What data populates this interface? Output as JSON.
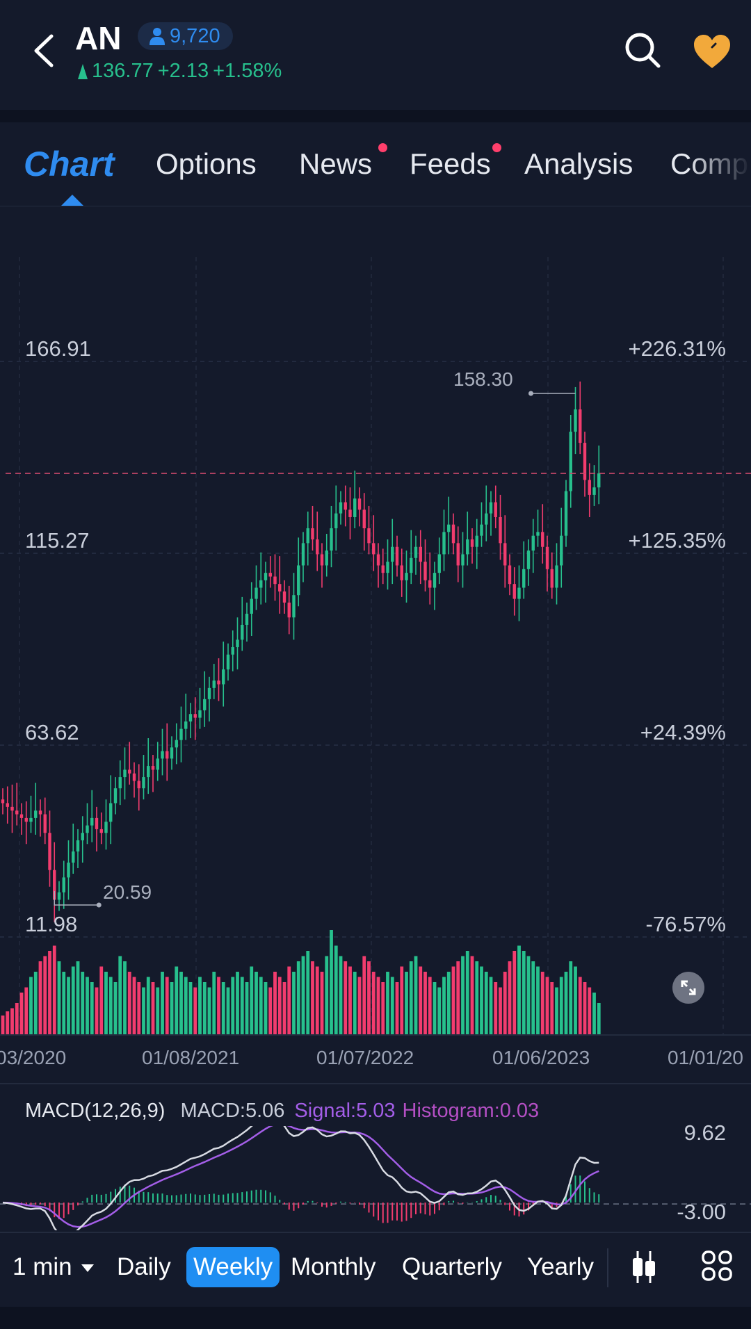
{
  "header": {
    "ticker": "AN",
    "followers": "9,720",
    "price": "136.77",
    "change": "+2.13",
    "change_pct": "+1.58%",
    "accent_up": "#27c08d",
    "accent_down": "#f23c6e",
    "favorite_color": "#f2a93b"
  },
  "tabs": [
    {
      "label": "Chart",
      "active": true
    },
    {
      "label": "Options",
      "dot": false
    },
    {
      "label": "News",
      "dot": true
    },
    {
      "label": "Feeds",
      "dot": true
    },
    {
      "label": "Analysis",
      "dot": false
    },
    {
      "label": "Comp",
      "dot": false
    }
  ],
  "price_axis": {
    "left": [
      "166.91",
      "115.27",
      "63.62",
      "11.98"
    ],
    "right": [
      "+226.31%",
      "+125.35%",
      "+24.39%",
      "-76.57%"
    ]
  },
  "annotations": {
    "high": "158.30",
    "low": "20.59"
  },
  "x_axis_dates": [
    "03/2020",
    "01/08/2021",
    "01/07/2022",
    "01/06/2023",
    "01/01/20"
  ],
  "macd": {
    "title": "MACD(12,26,9)",
    "macd_label": "MACD:5.06",
    "signal_label": "Signal:5.03",
    "histogram_label": "Histogram:0.03",
    "axis_top": "9.62",
    "axis_bottom": "-3.00",
    "signal_color": "#a45ee8",
    "histogram_color": "#b44fc4"
  },
  "periods": {
    "interval": "1 min",
    "items": [
      "Daily",
      "Weekly",
      "Monthly",
      "Quarterly",
      "Yearly"
    ],
    "active": "Weekly"
  },
  "chart_data": {
    "type": "candlestick",
    "price_range": [
      11.98,
      166.91
    ],
    "current_price": 136.77,
    "high": 158.3,
    "low": 20.59,
    "macd_range": [
      -3.0,
      9.62
    ],
    "closes": [
      48,
      47,
      46,
      45,
      44,
      43,
      44,
      46,
      45,
      40,
      30,
      22,
      24,
      28,
      32,
      35,
      38,
      40,
      42,
      44,
      41,
      40,
      43,
      48,
      52,
      55,
      57,
      56,
      54,
      52,
      55,
      58,
      57,
      60,
      62,
      60,
      63,
      65,
      68,
      70,
      72,
      71,
      73,
      76,
      79,
      81,
      80,
      84,
      88,
      90,
      92,
      96,
      99,
      103,
      106,
      108,
      110,
      109,
      107,
      105,
      102,
      98,
      104,
      112,
      118,
      122,
      119,
      115,
      112,
      116,
      122,
      126,
      129,
      127,
      125,
      130,
      127,
      122,
      118,
      115,
      112,
      110,
      113,
      117,
      112,
      108,
      110,
      114,
      117,
      113,
      108,
      106,
      110,
      115,
      121,
      123,
      118,
      112,
      115,
      119,
      117,
      120,
      123,
      126,
      129,
      125,
      118,
      112,
      107,
      103,
      106,
      111,
      116,
      120,
      121,
      117,
      111,
      106,
      112,
      120,
      132,
      148,
      154,
      145,
      135,
      131,
      133,
      136.77
    ],
    "volumes": [
      18,
      22,
      25,
      30,
      40,
      45,
      55,
      60,
      70,
      75,
      80,
      85,
      70,
      60,
      55,
      65,
      70,
      60,
      55,
      50,
      45,
      65,
      60,
      55,
      50,
      75,
      70,
      60,
      55,
      50,
      45,
      55,
      50,
      45,
      60,
      55,
      50,
      65,
      60,
      55,
      50,
      45,
      55,
      50,
      45,
      60,
      55,
      50,
      45,
      55,
      60,
      55,
      50,
      65,
      60,
      55,
      50,
      45,
      60,
      55,
      50,
      65,
      60,
      70,
      75,
      80,
      70,
      65,
      60,
      75,
      100,
      85,
      75,
      70,
      65,
      60,
      55,
      75,
      70,
      60,
      55,
      50,
      60,
      55,
      50,
      65,
      60,
      70,
      75,
      65,
      60,
      55,
      50,
      45,
      55,
      60,
      65,
      70,
      75,
      80,
      75,
      70,
      65,
      60,
      55,
      50,
      45,
      60,
      70,
      80,
      85,
      80,
      75,
      70,
      65,
      60,
      55,
      50,
      45,
      55,
      60,
      70,
      65,
      55,
      50,
      45,
      40,
      30
    ]
  }
}
